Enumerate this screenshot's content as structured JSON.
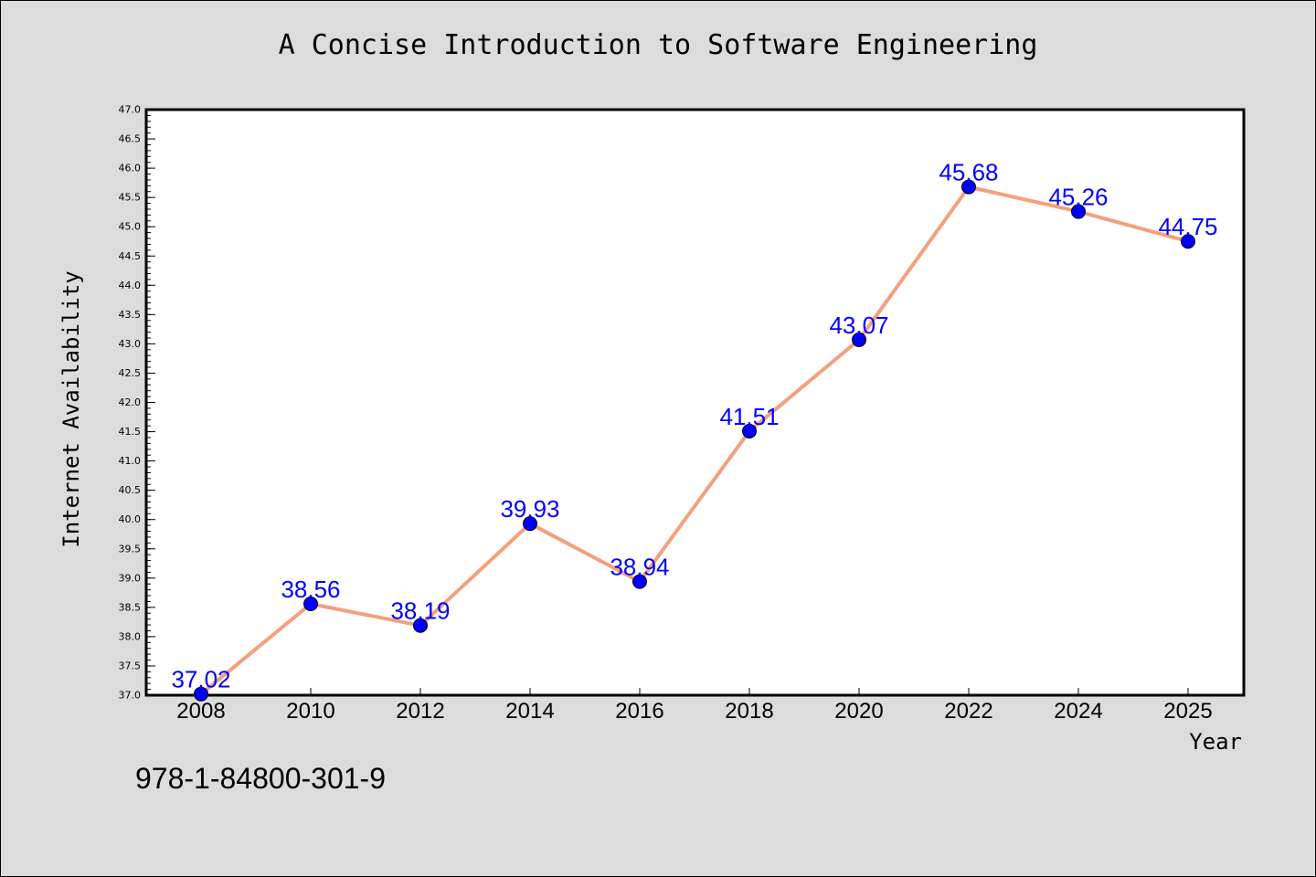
{
  "chart_data": {
    "type": "line",
    "title": "A Concise Introduction to Software Engineering",
    "xlabel": "Year",
    "ylabel": "Internet Availability",
    "x": [
      "2008",
      "2010",
      "2012",
      "2014",
      "2016",
      "2018",
      "2020",
      "2022",
      "2024",
      "2025"
    ],
    "series": [
      {
        "values": [
          37.02,
          38.56,
          38.19,
          39.93,
          38.94,
          41.51,
          43.07,
          45.68,
          45.26,
          44.75
        ],
        "labels": [
          "37.02",
          "38.56",
          "38.19",
          "39.93",
          "38.94",
          "41.51",
          "43.07",
          "45.68",
          "45.26",
          "44.75"
        ]
      }
    ],
    "ylim": [
      37.0,
      47.0
    ],
    "y_major_ticks": [
      "37.0",
      "37.5",
      "38.0",
      "38.5",
      "39.0",
      "39.5",
      "40.0",
      "40.5",
      "41.0",
      "41.5",
      "42.0",
      "42.5",
      "43.0",
      "43.5",
      "44.0",
      "44.5",
      "45.0",
      "45.5",
      "46.0",
      "46.5",
      "47.0"
    ],
    "grid": false,
    "colors": {
      "line": "#f4a07e",
      "marker": "#0000ff",
      "data_label": "#0000ff",
      "plot_background": "#ffffff",
      "figure_background": "#dcdcdc"
    }
  },
  "footer": {
    "isbn": "978-1-84800-301-9"
  }
}
